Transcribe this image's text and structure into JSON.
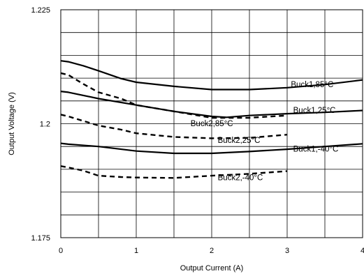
{
  "chart_data": {
    "type": "line",
    "title": "",
    "xlabel": "Output Current (A)",
    "ylabel": "Output Voltage (V)",
    "xlim": [
      0,
      4
    ],
    "ylim": [
      1.175,
      1.225
    ],
    "x_ticks": [
      0,
      1,
      2,
      3,
      4
    ],
    "y_ticks": [
      1.175,
      1.2,
      1.225
    ],
    "x_tick_labels": [
      "0",
      "1",
      "2",
      "3",
      "4"
    ],
    "y_tick_labels": [
      "1.175",
      "1.2",
      "1.225"
    ],
    "x_gridlines": [
      0,
      0.5,
      1,
      1.5,
      2,
      2.5,
      3,
      3.5,
      4
    ],
    "y_gridlines": [
      1.175,
      1.18,
      1.185,
      1.19,
      1.195,
      1.2,
      1.205,
      1.21,
      1.215,
      1.22,
      1.225
    ],
    "grid": true,
    "legend": "none",
    "series": [
      {
        "name": "Buck1,85°C",
        "style": "solid",
        "x": [
          0,
          0.1,
          0.3,
          0.5,
          0.8,
          1.0,
          1.5,
          2.0,
          2.5,
          3.0,
          3.5,
          4.0
        ],
        "y": [
          1.2138,
          1.2136,
          1.2127,
          1.2116,
          1.2099,
          1.2091,
          1.2082,
          1.2075,
          1.2075,
          1.2079,
          1.2086,
          1.2096
        ]
      },
      {
        "name": "Buck1,25°C",
        "style": "solid",
        "x": [
          0,
          0.1,
          0.5,
          1.0,
          1.5,
          2.0,
          2.2,
          2.5,
          3.0,
          3.5,
          4.0
        ],
        "y": [
          1.2071,
          1.2069,
          1.2055,
          1.2041,
          1.2027,
          1.2016,
          1.2014,
          1.2018,
          1.2022,
          1.2025,
          1.2029
        ]
      },
      {
        "name": "Buck2,85°C",
        "style": "dashed",
        "x": [
          0,
          0.1,
          0.3,
          0.5,
          0.8,
          1.0,
          1.5,
          2.0,
          2.5,
          3.0
        ],
        "y": [
          1.2111,
          1.2107,
          1.2087,
          1.2069,
          1.2055,
          1.2041,
          1.2027,
          1.2013,
          1.2013,
          1.2018
        ]
      },
      {
        "name": "Buck2,25°C",
        "style": "dashed",
        "x": [
          0,
          0.1,
          0.3,
          0.5,
          0.8,
          1.0,
          1.5,
          2.0,
          2.5,
          3.0
        ],
        "y": [
          1.202,
          1.2016,
          1.2006,
          1.1996,
          1.1987,
          1.1979,
          1.1971,
          1.1968,
          1.1969,
          1.1976
        ]
      },
      {
        "name": "Buck1,-40°C",
        "style": "solid",
        "x": [
          0,
          0.1,
          0.5,
          1.0,
          1.5,
          2.0,
          2.5,
          3.0,
          3.5,
          4.0
        ],
        "y": [
          1.1957,
          1.1955,
          1.195,
          1.194,
          1.1935,
          1.1935,
          1.1939,
          1.1944,
          1.195,
          1.1956
        ]
      },
      {
        "name": "Buck2,-40°C",
        "style": "dashed",
        "x": [
          0,
          0.1,
          0.3,
          0.5,
          0.8,
          1.0,
          1.5,
          2.0,
          2.5,
          3.0
        ],
        "y": [
          1.1907,
          1.1904,
          1.1897,
          1.1886,
          1.1883,
          1.1882,
          1.1881,
          1.1886,
          1.189,
          1.1896
        ]
      }
    ],
    "annotations": [
      {
        "text": "Buck1,85°C",
        "x": 3.05,
        "y": 1.208
      },
      {
        "text": "Buck1,25°C",
        "x": 3.08,
        "y": 1.2024
      },
      {
        "text": "Buck2,85°C",
        "x": 1.72,
        "y": 1.1995
      },
      {
        "text": "Buck2,25°C",
        "x": 2.08,
        "y": 1.1958
      },
      {
        "text": "Buck1,-40°C",
        "x": 3.08,
        "y": 1.1939
      },
      {
        "text": "Buck2,-40°C",
        "x": 2.08,
        "y": 1.1876
      }
    ]
  }
}
